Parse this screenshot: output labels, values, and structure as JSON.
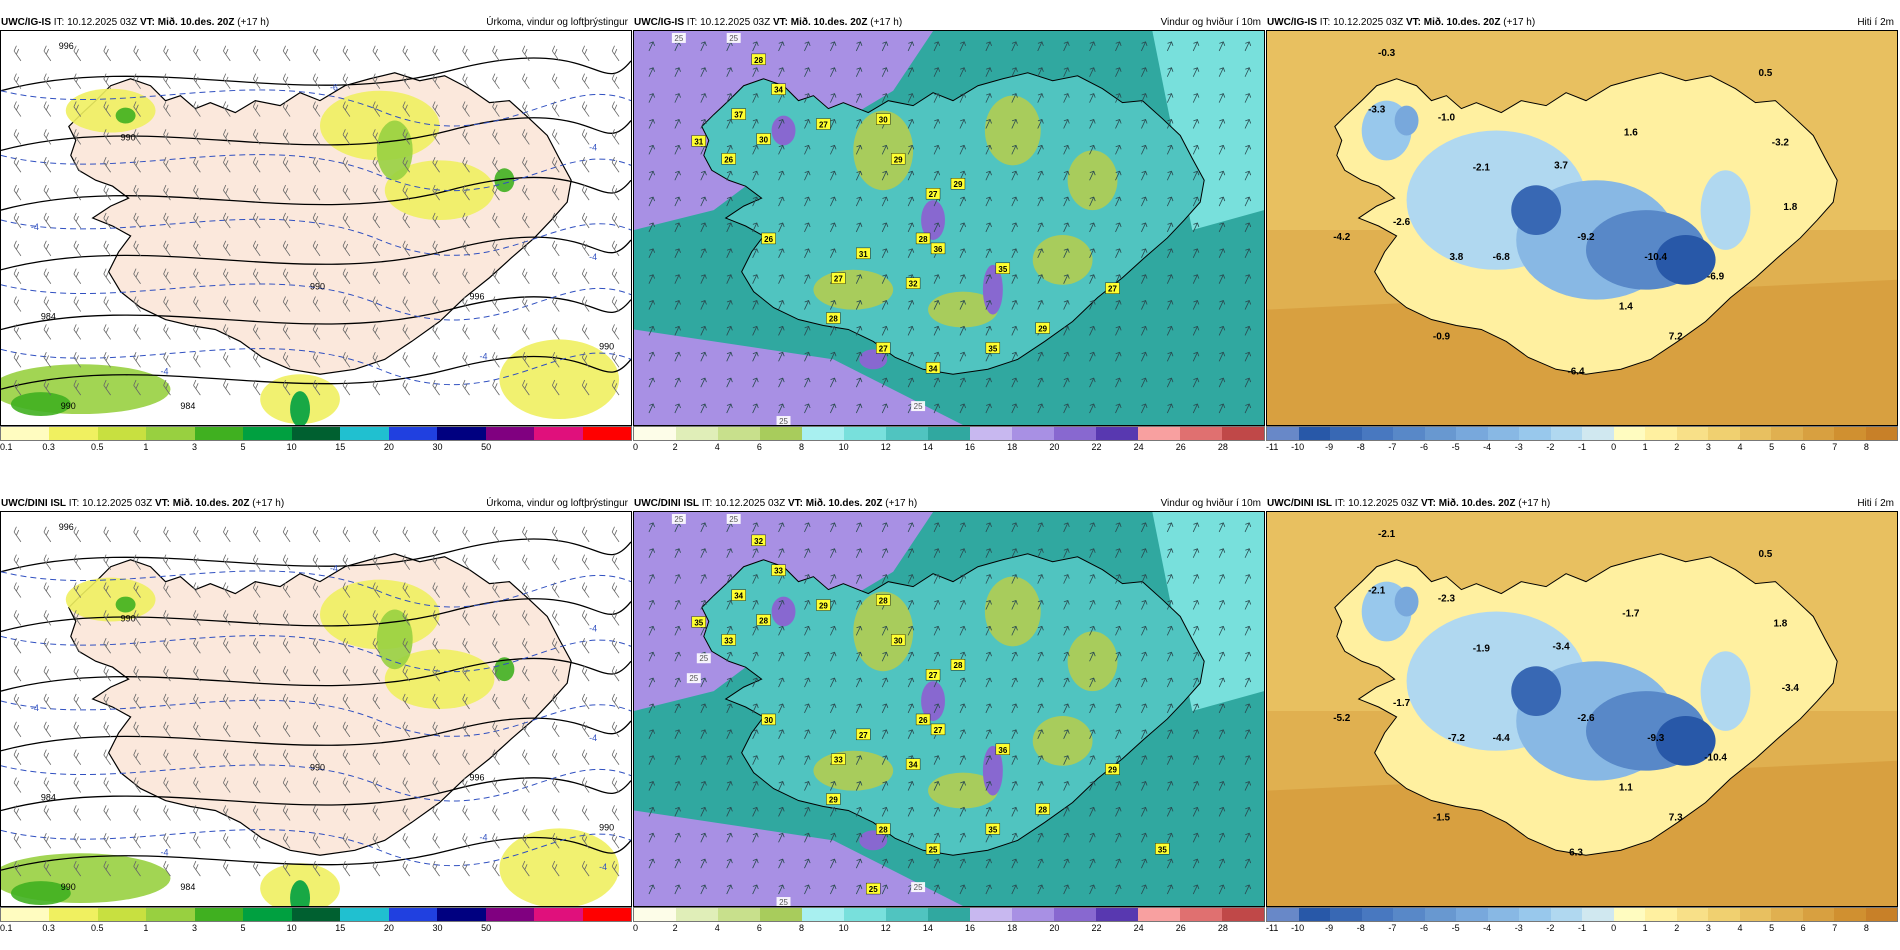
{
  "rows": [
    {
      "model": "UWC/IG-IS",
      "issue": "IT: 10.12.2025 03Z",
      "valid_label": "VT:",
      "valid": "Mið. 10.des. 20Z",
      "lead": "(+17 h)"
    },
    {
      "model": "UWC/DINI ISL",
      "issue": "IT: 10.12.2025 03Z",
      "valid_label": "VT:",
      "valid": "Mið. 10.des. 20Z",
      "lead": "(+17 h)"
    }
  ],
  "panel_titles": {
    "precip": "Úrkoma, vindur og loftþrýstingur",
    "wind": "Vindur og hviður í 10m",
    "temp": "Hiti í 2m"
  },
  "legends": {
    "precip": {
      "ticks": [
        "0.1",
        "0.3",
        "0.5",
        "1",
        "3",
        "5",
        "10",
        "15",
        "20",
        "30",
        "50"
      ],
      "colors": [
        "#fffcc0",
        "#f0f060",
        "#c8e040",
        "#98d040",
        "#40b020",
        "#00a040",
        "#006030",
        "#20c0d0",
        "#2040e0",
        "#000080",
        "#800080",
        "#e0107c",
        "#ff0000"
      ]
    },
    "wind": {
      "ticks": [
        "0",
        "2",
        "4",
        "6",
        "8",
        "10",
        "12",
        "14",
        "16",
        "18",
        "20",
        "22",
        "24",
        "26",
        "28"
      ],
      "colors": [
        "#fdfde8",
        "#e0eeb8",
        "#c8e08c",
        "#a8cc5c",
        "#a8f0f0",
        "#78e0dc",
        "#50c4c0",
        "#30a8a0",
        "#c8b8f0",
        "#a890e4",
        "#8868d0",
        "#5838b0",
        "#f8a0a0",
        "#e07070",
        "#c04848"
      ]
    },
    "temp": {
      "ticks": [
        "-11",
        "-10",
        "-9",
        "-8",
        "-7",
        "-6",
        "-5",
        "-4",
        "-3",
        "-2",
        "-1",
        "0",
        "1",
        "2",
        "3",
        "4",
        "5",
        "6",
        "7",
        "8"
      ],
      "colors": [
        "#6888c8",
        "#2858a8",
        "#3868b4",
        "#4878c0",
        "#5888c8",
        "#6898d0",
        "#78a8dc",
        "#88b8e4",
        "#98c8ec",
        "#b0d8f0",
        "#d0e8f0",
        "#fffcc0",
        "#fff0a0",
        "#f8e088",
        "#f0d070",
        "#e8c060",
        "#e0b050",
        "#d8a040",
        "#d09030",
        "#c88028"
      ]
    }
  },
  "maps": {
    "precip_top": {
      "isobars": [
        "996",
        "990",
        "984",
        "990",
        "996",
        "990",
        "984",
        "990"
      ],
      "isotherms": [
        "-6",
        "-4",
        "-4",
        "-4",
        "-4",
        "-4"
      ]
    },
    "precip_bottom": {
      "isobars": [
        "996",
        "990",
        "984",
        "990",
        "996",
        "990",
        "984",
        "990"
      ],
      "isotherms": [
        "-4",
        "-4",
        "-4",
        "-4",
        "-4",
        "-4",
        "-4"
      ]
    },
    "wind_top": {
      "gust_labels": [
        "28",
        "34",
        "37",
        "31",
        "26",
        "30",
        "27",
        "30",
        "29",
        "27",
        "29",
        "28",
        "26",
        "31",
        "36",
        "27",
        "32",
        "35",
        "28",
        "27",
        "34",
        "35",
        "27",
        "29"
      ],
      "contour_labels": [
        "25",
        "25",
        "25",
        "25"
      ]
    },
    "wind_bottom": {
      "gust_labels": [
        "32",
        "33",
        "34",
        "35",
        "33",
        "28",
        "29",
        "28",
        "30",
        "27",
        "28",
        "26",
        "30",
        "27",
        "27",
        "33",
        "34",
        "36",
        "29",
        "28",
        "25",
        "35",
        "29",
        "28",
        "35",
        "25"
      ],
      "contour_labels": [
        "25",
        "25",
        "25",
        "25",
        "25",
        "25"
      ]
    },
    "temp_top": {
      "labels": [
        "-0.3",
        "0.5",
        "-3.3",
        "-1.0",
        "1.6",
        "-3.2",
        "-2.1",
        "3.7",
        "1.8",
        "-2.6",
        "-4.2",
        "-6.8",
        "-9.2",
        "3.8",
        "-10.4",
        "-6.9",
        "1.4",
        "-0.9",
        "7.2",
        "-6.4"
      ]
    },
    "temp_bottom": {
      "labels": [
        "-2.1",
        "0.5",
        "-2.1",
        "-2.3",
        "-1.7",
        "1.8",
        "-1.9",
        "-3.4",
        "-3.4",
        "-1.7",
        "-5.2",
        "-4.4",
        "-2.6",
        "-7.2",
        "-9.3",
        "-10.4",
        "1.1",
        "-1.5",
        "7.3",
        "6.3"
      ]
    }
  }
}
